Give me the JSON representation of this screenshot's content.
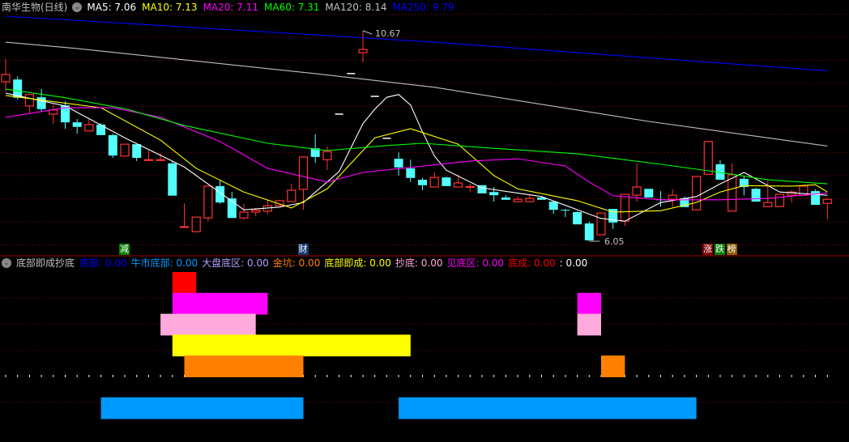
{
  "header": {
    "title": "南华生物(日线)",
    "ma_items": [
      {
        "label": "MA5: 7.06",
        "color": "#ffffff"
      },
      {
        "label": "MA10: 7.13",
        "color": "#ffff00"
      },
      {
        "label": "MA20: 7.11",
        "color": "#ff00ff"
      },
      {
        "label": "MA60: 7.31",
        "color": "#00ff00"
      },
      {
        "label": "MA120: 8.14",
        "color": "#c0c0c0"
      },
      {
        "label": "MA250: 9.79",
        "color": "#0000ff"
      }
    ],
    "toggle_icon": "chevron-down-circle"
  },
  "subpanel": {
    "title": "底部即成抄底",
    "items": [
      {
        "label": "底部: 0.00",
        "color": "#0000ff"
      },
      {
        "label": "牛市底部: 0.00",
        "color": "#0099ff"
      },
      {
        "label": "大盘底区: 0.00",
        "color": "#b4a0ff"
      },
      {
        "label": "金坑: 0.00",
        "color": "#ff8000"
      },
      {
        "label": "底部即成: 0.00",
        "color": "#ffff00"
      },
      {
        "label": "抄底: 0.00",
        "color": "#ffaadd"
      },
      {
        "label": "见底区: 0.00",
        "color": "#ff00ff"
      },
      {
        "label": "底成: 0.00",
        "color": "#ff0000"
      },
      {
        "label": ": 0.00",
        "color": "#ffffff"
      }
    ]
  },
  "markers": [
    {
      "text": "减",
      "bg": "#008000",
      "candle": 10
    },
    {
      "text": "财",
      "bg": "#1a3a6e",
      "candle": 25
    },
    {
      "text": "涨",
      "bg": "#800000",
      "candle": 59
    },
    {
      "text": "跌",
      "bg": "#008000",
      "candle": 60
    },
    {
      "text": "榜",
      "bg": "#8a5a00",
      "candle": 61
    }
  ],
  "chart_data": {
    "type": "candlestick",
    "up_color": "#ff3232",
    "down_color": "#54ffff",
    "grid": true,
    "annotations": {
      "high": {
        "text": "10.67",
        "value": 10.67,
        "candle": 30
      },
      "low": {
        "text": "6.05",
        "value": 6.05,
        "candle": 49
      }
    },
    "ohlc": [
      [
        9.55,
        10.05,
        9.34,
        9.71
      ],
      [
        9.6,
        9.67,
        9.16,
        9.2
      ],
      [
        9.02,
        9.27,
        8.84,
        9.27
      ],
      [
        9.21,
        9.39,
        8.89,
        8.95
      ],
      [
        8.84,
        9.05,
        8.63,
        8.93
      ],
      [
        9.03,
        9.12,
        8.52,
        8.66
      ],
      [
        8.66,
        8.73,
        8.41,
        8.56
      ],
      [
        8.47,
        8.73,
        8.47,
        8.61
      ],
      [
        8.61,
        8.64,
        8.38,
        8.38
      ],
      [
        8.38,
        8.41,
        7.88,
        7.93
      ],
      [
        7.92,
        8.18,
        7.92,
        8.18
      ],
      [
        8.18,
        8.18,
        7.81,
        7.88
      ],
      [
        7.84,
        8.04,
        7.81,
        7.84
      ],
      [
        7.84,
        7.99,
        7.81,
        7.84
      ],
      [
        7.76,
        7.81,
        7.05,
        7.05
      ],
      [
        6.37,
        6.88,
        6.37,
        6.37
      ],
      [
        6.26,
        6.58,
        6.24,
        6.58
      ],
      [
        6.56,
        7.26,
        6.49,
        7.26
      ],
      [
        7.26,
        7.38,
        6.87,
        6.9
      ],
      [
        6.99,
        7.13,
        6.56,
        6.56
      ],
      [
        6.56,
        6.87,
        6.53,
        6.69
      ],
      [
        6.69,
        6.78,
        6.6,
        6.73
      ],
      [
        6.71,
        6.96,
        6.64,
        6.83
      ],
      [
        6.83,
        6.94,
        6.83,
        6.94
      ],
      [
        6.92,
        7.31,
        6.92,
        7.17
      ],
      [
        7.19,
        7.9,
        6.74,
        7.9
      ],
      [
        8.09,
        8.4,
        7.77,
        7.9
      ],
      [
        7.84,
        8.13,
        7.61,
        8.02
      ],
      [
        8.84,
        8.84,
        8.84,
        8.84
      ],
      [
        9.73,
        9.73,
        9.73,
        9.73
      ],
      [
        10.19,
        10.67,
        9.98,
        10.26
      ],
      [
        9.23,
        9.23,
        9.23,
        9.23
      ],
      [
        8.31,
        8.31,
        8.31,
        8.31
      ],
      [
        7.86,
        8.0,
        7.49,
        7.67
      ],
      [
        7.65,
        7.84,
        7.35,
        7.44
      ],
      [
        7.4,
        7.44,
        7.17,
        7.28
      ],
      [
        7.24,
        7.56,
        7.24,
        7.45
      ],
      [
        7.45,
        7.47,
        7.26,
        7.26
      ],
      [
        7.24,
        7.51,
        7.24,
        7.33
      ],
      [
        7.24,
        7.31,
        7.13,
        7.25
      ],
      [
        7.28,
        7.28,
        7.1,
        7.1
      ],
      [
        7.13,
        7.24,
        6.92,
        7.06
      ],
      [
        7.01,
        7.06,
        6.96,
        6.96
      ],
      [
        6.92,
        7.03,
        6.92,
        6.97
      ],
      [
        6.92,
        7.08,
        6.92,
        6.99
      ],
      [
        7.01,
        7.03,
        6.96,
        6.96
      ],
      [
        6.92,
        6.92,
        6.65,
        6.74
      ],
      [
        6.74,
        6.76,
        6.58,
        6.73
      ],
      [
        6.69,
        6.71,
        6.42,
        6.42
      ],
      [
        6.44,
        6.48,
        6.05,
        6.07
      ],
      [
        6.19,
        6.67,
        6.19,
        6.67
      ],
      [
        6.76,
        6.76,
        6.32,
        6.46
      ],
      [
        6.49,
        7.08,
        6.39,
        7.08
      ],
      [
        7.06,
        7.76,
        6.92,
        7.24
      ],
      [
        7.2,
        7.2,
        7.01,
        7.01
      ],
      [
        6.97,
        7.15,
        6.81,
        6.96
      ],
      [
        6.97,
        7.19,
        6.8,
        7.06
      ],
      [
        6.99,
        7.03,
        6.8,
        6.8
      ],
      [
        6.74,
        7.47,
        6.74,
        7.47
      ],
      [
        7.52,
        8.24,
        7.52,
        8.24
      ],
      [
        7.74,
        7.83,
        7.4,
        7.4
      ],
      [
        6.71,
        7.76,
        6.71,
        7.51
      ],
      [
        7.42,
        7.49,
        7.06,
        7.24
      ],
      [
        7.2,
        7.22,
        6.92,
        6.92
      ],
      [
        6.81,
        7.38,
        6.81,
        6.9
      ],
      [
        6.81,
        7.08,
        6.81,
        7.08
      ],
      [
        7.06,
        7.17,
        6.9,
        7.13
      ],
      [
        7.06,
        7.29,
        7.06,
        7.26
      ],
      [
        7.15,
        7.19,
        6.85,
        6.85
      ],
      [
        6.88,
        6.99,
        6.53,
        6.97
      ]
    ],
    "series": [
      {
        "name": "MA5",
        "color": "#ffffff",
        "points": [
          [
            0,
            9.3
          ],
          [
            5,
            9.02
          ],
          [
            10,
            8.32
          ],
          [
            15,
            7.68
          ],
          [
            20,
            6.74
          ],
          [
            23,
            6.8
          ],
          [
            25,
            6.9
          ],
          [
            28,
            7.58
          ],
          [
            30,
            8.63
          ],
          [
            31,
            8.95
          ],
          [
            32,
            9.21
          ],
          [
            33,
            9.27
          ],
          [
            34,
            9.04
          ],
          [
            35,
            8.45
          ],
          [
            36,
            7.92
          ],
          [
            37,
            7.61
          ],
          [
            40,
            7.22
          ],
          [
            45,
            7.03
          ],
          [
            50,
            6.55
          ],
          [
            52,
            6.49
          ],
          [
            55,
            6.9
          ],
          [
            58,
            7.03
          ],
          [
            60,
            7.31
          ],
          [
            62,
            7.56
          ],
          [
            65,
            7.13
          ],
          [
            69,
            7.06
          ]
        ]
      },
      {
        "name": "MA10",
        "color": "#ffff00",
        "points": [
          [
            0,
            9.25
          ],
          [
            8,
            8.98
          ],
          [
            13,
            8.27
          ],
          [
            16,
            7.65
          ],
          [
            20,
            7.13
          ],
          [
            24,
            6.78
          ],
          [
            27,
            7.2
          ],
          [
            31,
            8.32
          ],
          [
            34,
            8.52
          ],
          [
            38,
            8.18
          ],
          [
            41,
            7.49
          ],
          [
            43,
            7.2
          ],
          [
            48,
            6.94
          ],
          [
            51,
            6.69
          ],
          [
            55,
            6.72
          ],
          [
            58,
            6.9
          ],
          [
            60,
            7.13
          ],
          [
            62,
            7.27
          ],
          [
            66,
            7.26
          ],
          [
            68,
            7.29
          ],
          [
            69,
            7.13
          ]
        ]
      },
      {
        "name": "MA20",
        "color": "#ff00ff",
        "points": [
          [
            0,
            8.77
          ],
          [
            5,
            8.98
          ],
          [
            9,
            8.98
          ],
          [
            13,
            8.77
          ],
          [
            18,
            8.24
          ],
          [
            22,
            7.65
          ],
          [
            27,
            7.35
          ],
          [
            30,
            7.56
          ],
          [
            34,
            7.67
          ],
          [
            39,
            7.81
          ],
          [
            43,
            7.86
          ],
          [
            47,
            7.7
          ],
          [
            49,
            7.35
          ],
          [
            51,
            7.05
          ],
          [
            55,
            6.96
          ],
          [
            60,
            6.96
          ],
          [
            64,
            6.99
          ],
          [
            69,
            7.11
          ]
        ]
      },
      {
        "name": "MA60",
        "color": "#00ff00",
        "points": [
          [
            0,
            9.39
          ],
          [
            5,
            9.2
          ],
          [
            10,
            8.96
          ],
          [
            15,
            8.59
          ],
          [
            22,
            8.2
          ],
          [
            27,
            8.04
          ],
          [
            32,
            8.15
          ],
          [
            35,
            8.2
          ],
          [
            41,
            8.09
          ],
          [
            48,
            7.97
          ],
          [
            55,
            7.74
          ],
          [
            60,
            7.56
          ],
          [
            64,
            7.4
          ],
          [
            69,
            7.31
          ]
        ]
      },
      {
        "name": "MA120",
        "color": "#c0c0c0",
        "points": [
          [
            0,
            10.42
          ],
          [
            6,
            10.28
          ],
          [
            26,
            9.73
          ],
          [
            36,
            9.43
          ],
          [
            54,
            8.68
          ],
          [
            69,
            8.14
          ]
        ]
      },
      {
        "name": "MA250",
        "color": "#0000ff",
        "points": [
          [
            0,
            10.99
          ],
          [
            26,
            10.58
          ],
          [
            36,
            10.42
          ],
          [
            69,
            9.79
          ]
        ]
      }
    ],
    "indicator": {
      "signals": [
        {
          "name": "底成",
          "color": "#ff0000",
          "level": 5,
          "ranges": [
            [
              14,
              15
            ]
          ]
        },
        {
          "name": "见底区",
          "color": "#ff00ff",
          "level": 4,
          "ranges": [
            [
              14,
              21
            ],
            [
              48,
              49
            ]
          ]
        },
        {
          "name": "抄底",
          "color": "#ffaadd",
          "level": 3,
          "ranges": [
            [
              13,
              20
            ],
            [
              48,
              49
            ]
          ]
        },
        {
          "name": "底部即成",
          "color": "#ffff00",
          "level": 2,
          "ranges": [
            [
              14,
              33
            ]
          ]
        },
        {
          "name": "金坑",
          "color": "#ff8000",
          "level": 1,
          "ranges": [
            [
              15,
              24
            ],
            [
              50,
              51
            ]
          ]
        },
        {
          "name": "牛市底部",
          "color": "#0099ff",
          "level": -1,
          "ranges": [
            [
              8,
              24
            ],
            [
              33,
              57
            ]
          ]
        }
      ]
    }
  }
}
